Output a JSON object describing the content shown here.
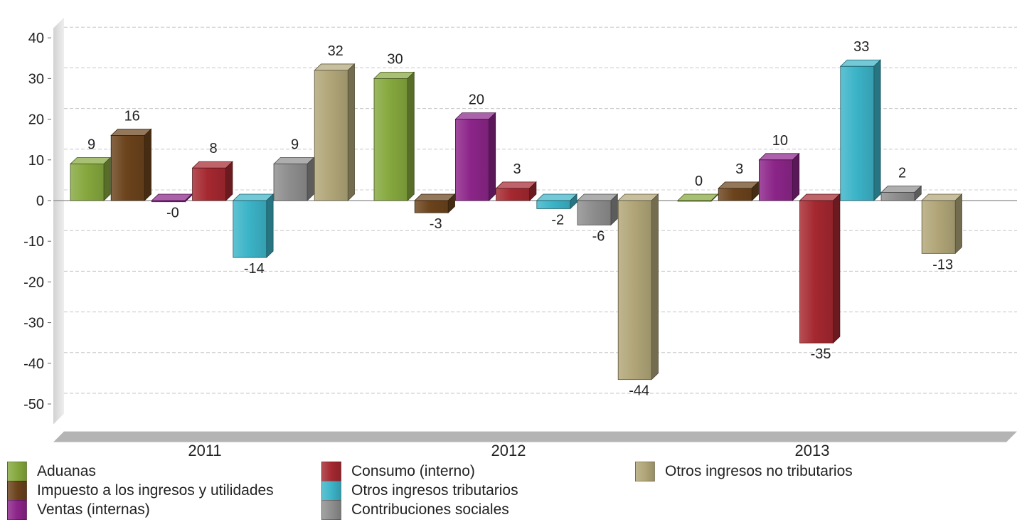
{
  "chart_data": {
    "type": "bar",
    "categories": [
      "2011",
      "2012",
      "2013"
    ],
    "series": [
      {
        "name": "Aduanas",
        "color": "#86a83e",
        "values": [
          9,
          30,
          0
        ],
        "labels": [
          "9",
          "30",
          "0"
        ]
      },
      {
        "name": "Impuesto a los ingresos y utilidades",
        "color": "#6b431c",
        "values": [
          16,
          -3,
          3
        ],
        "labels": [
          "16",
          "-3",
          "3"
        ]
      },
      {
        "name": "Ventas (internas)",
        "color": "#8c2589",
        "values": [
          -0.3,
          20,
          10
        ],
        "labels": [
          "-0",
          "20",
          "10"
        ]
      },
      {
        "name": "Consumo (interno)",
        "color": "#a52830",
        "values": [
          8,
          3,
          -35
        ],
        "labels": [
          "8",
          "3",
          "-35"
        ]
      },
      {
        "name": "Otros ingresos tributarios",
        "color": "#3cb4c8",
        "values": [
          -14,
          -2,
          33
        ],
        "labels": [
          "-14",
          "-2",
          "33"
        ]
      },
      {
        "name": "Contribuciones sociales",
        "color": "#8e8e8e",
        "values": [
          9,
          -6,
          2
        ],
        "labels": [
          "9",
          "-6",
          "2"
        ]
      },
      {
        "name": "Otros ingresos no tributarios",
        "color": "#b1a678",
        "values": [
          32,
          -44,
          -13
        ],
        "labels": [
          "32",
          "-44",
          "-13"
        ]
      }
    ],
    "yticks": [
      "40",
      "30",
      "20",
      "10",
      "0",
      "-10",
      "-20",
      "-30",
      "-40",
      "-50"
    ],
    "ylim": [
      -55,
      45
    ],
    "grid": true,
    "legend_position": "bottom",
    "three_d": true
  }
}
